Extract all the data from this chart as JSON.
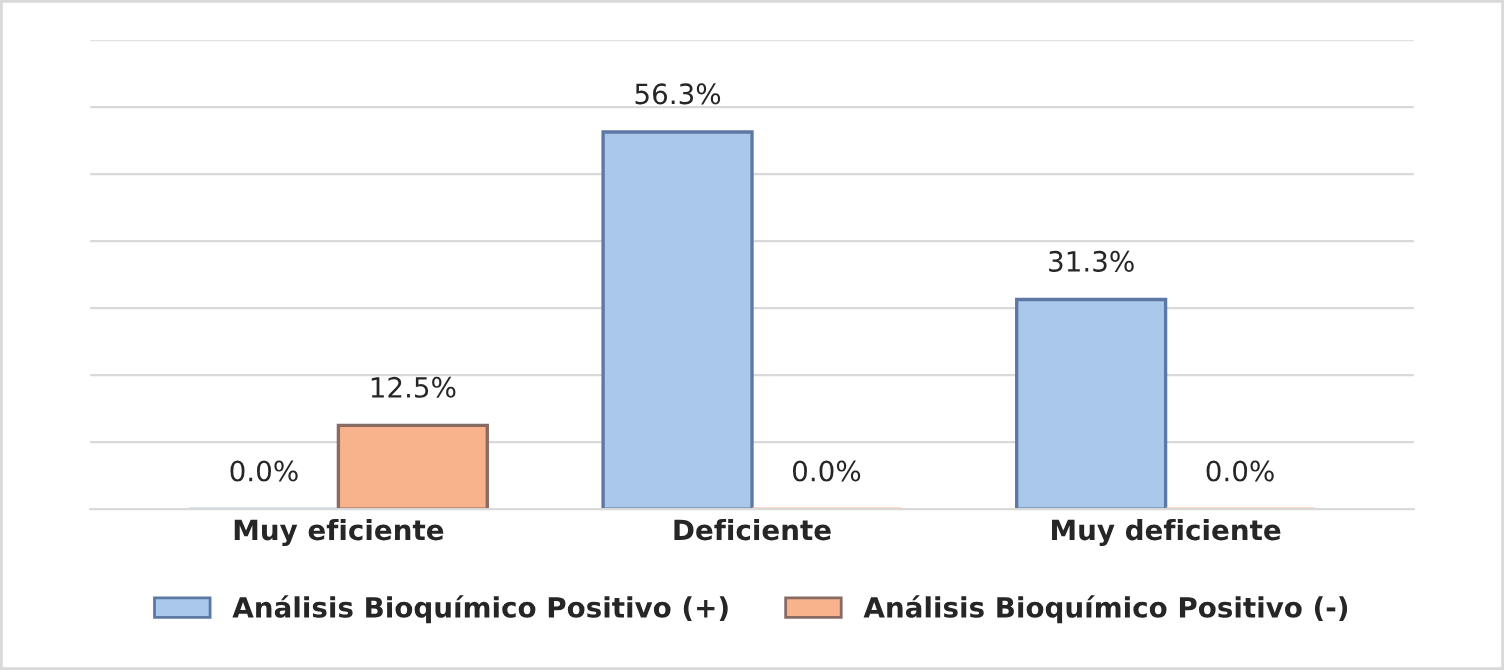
{
  "chart_data": {
    "type": "bar",
    "categories": [
      "Muy eficiente",
      "Deficiente",
      "Muy deficiente"
    ],
    "series": [
      {
        "name": "Análisis Bioquímico Positivo (+)",
        "color": "#a9c8ea",
        "values": [
          0.0,
          56.3,
          31.3
        ],
        "value_labels": [
          "0.0%",
          "56.3%",
          "31.3%"
        ]
      },
      {
        "name": "Análisis Bioquímico Positivo (-)",
        "color": "#f8b38c",
        "values": [
          12.5,
          0.0,
          0.0
        ],
        "value_labels": [
          "12.5%",
          "0.0%",
          "0.0%"
        ]
      }
    ],
    "ylim": [
      0,
      70
    ],
    "yticks": [
      {
        "value": 0,
        "label": null
      },
      {
        "value": 10,
        "label": null
      },
      {
        "value": 20,
        "label": null
      },
      {
        "value": 30,
        "label": null
      },
      {
        "value": 40,
        "label": null
      },
      {
        "value": 50,
        "label": null
      },
      {
        "value": 60,
        "label": null
      },
      {
        "value": 70,
        "label": null
      }
    ],
    "tick_labels": "x",
    "grid": "y",
    "legend": "bottom"
  }
}
